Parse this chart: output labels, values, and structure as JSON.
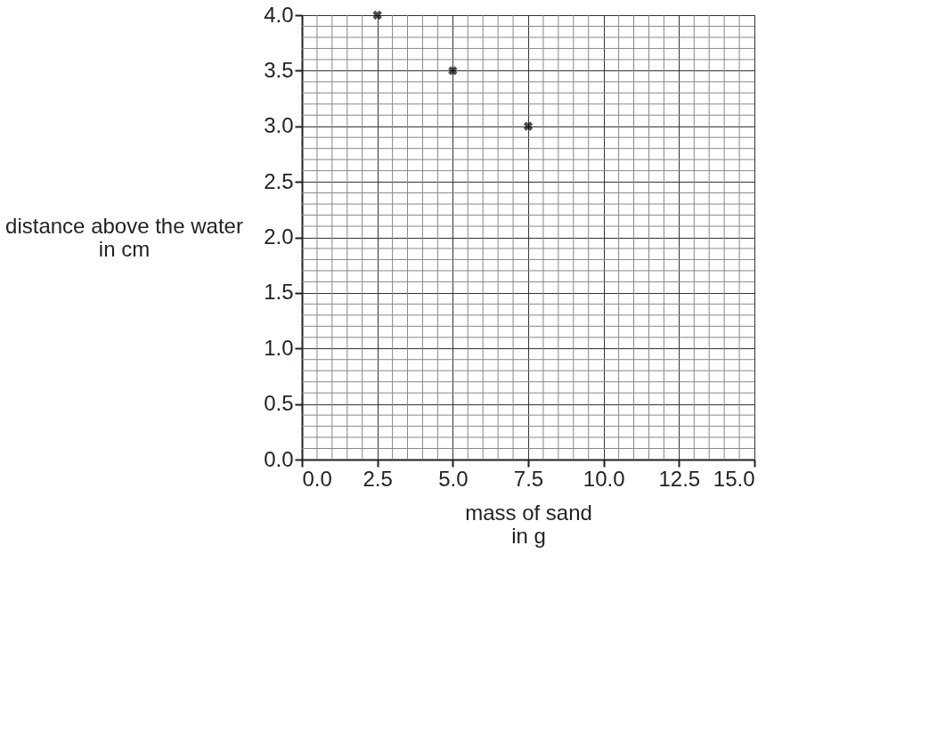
{
  "chart_data": {
    "type": "scatter",
    "xlabel": "mass of sand\nin g",
    "ylabel": "distance above the water\nin cm",
    "x": [
      2.5,
      5.0,
      7.5
    ],
    "series": [
      {
        "color": "#000000",
        "values": [
          4.0,
          3.5,
          3.0
        ]
      }
    ],
    "xlim": [
      0,
      15
    ],
    "ylim": [
      0,
      4
    ],
    "xticks": [
      {
        "value": 0,
        "label": "0.0"
      },
      2.5,
      {
        "value": 5,
        "label": "5.0"
      },
      7.5,
      {
        "value": 10,
        "label": "10.0"
      },
      12.5,
      {
        "value": 15,
        "label": "15.0"
      }
    ],
    "yticks": [
      {
        "value": 0,
        "label": "0.0"
      },
      0.5,
      {
        "value": 1,
        "label": "1.0"
      },
      1.5,
      {
        "value": 2,
        "label": "2.0"
      },
      2.5,
      {
        "value": 3,
        "label": "3.0"
      },
      3.5,
      {
        "value": 4,
        "label": "4.0"
      }
    ],
    "grid": true,
    "marker": "cross"
  }
}
